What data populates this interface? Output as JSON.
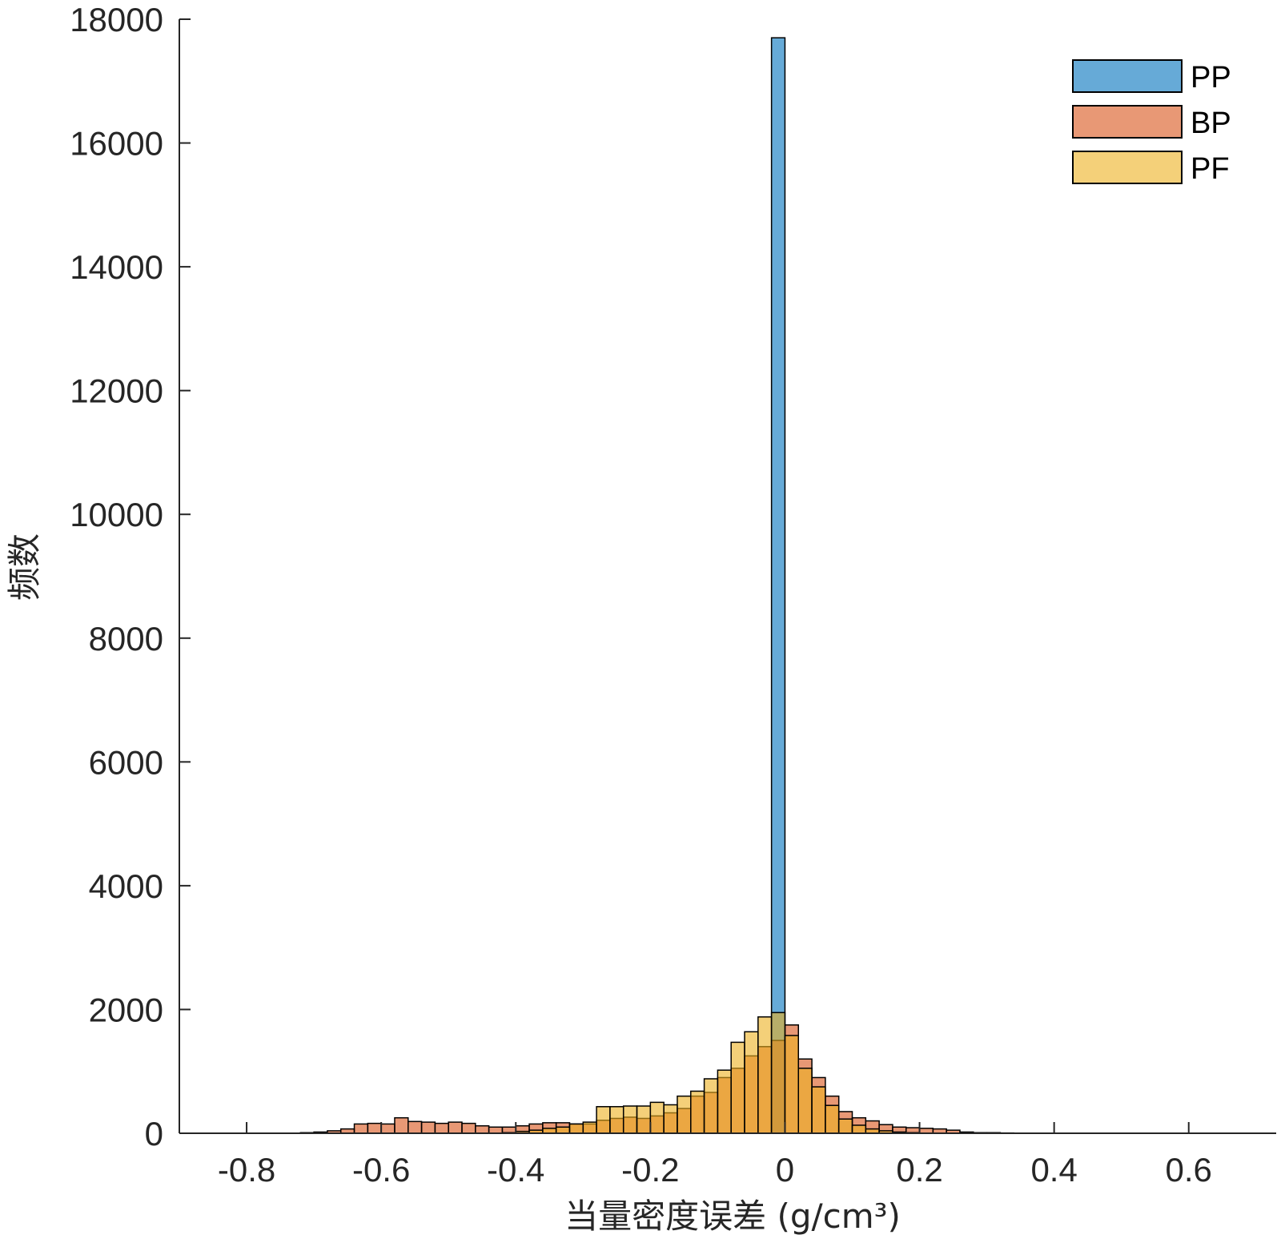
{
  "chart_data": {
    "type": "bar",
    "title": "",
    "xlabel": "当量密度误差 (g/cm³)",
    "ylabel": "频数",
    "xlim": [
      -0.9,
      0.73
    ],
    "ylim": [
      0,
      18000
    ],
    "xticks": [
      -0.8,
      -0.6,
      -0.4,
      -0.2,
      0,
      0.2,
      0.4,
      0.6
    ],
    "xtick_labels": [
      "-0.8",
      "-0.6",
      "-0.4",
      "-0.2",
      "0",
      "0.2",
      "0.4",
      "0.6"
    ],
    "yticks": [
      0,
      2000,
      4000,
      6000,
      8000,
      10000,
      12000,
      14000,
      16000,
      18000
    ],
    "ytick_labels": [
      "0",
      "2000",
      "4000",
      "6000",
      "8000",
      "10000",
      "12000",
      "14000",
      "16000",
      "18000"
    ],
    "bin_width": 0.02,
    "legend_position": "top-right",
    "grid": false,
    "series": [
      {
        "name": "PP",
        "color": "#0072BD",
        "bins": [
          {
            "x0": -0.02,
            "count": 17700
          }
        ]
      },
      {
        "name": "BP",
        "color": "#D95319",
        "bins": [
          {
            "x0": -0.72,
            "count": 10
          },
          {
            "x0": -0.7,
            "count": 20
          },
          {
            "x0": -0.68,
            "count": 40
          },
          {
            "x0": -0.66,
            "count": 70
          },
          {
            "x0": -0.64,
            "count": 150
          },
          {
            "x0": -0.62,
            "count": 160
          },
          {
            "x0": -0.6,
            "count": 150
          },
          {
            "x0": -0.58,
            "count": 250
          },
          {
            "x0": -0.56,
            "count": 190
          },
          {
            "x0": -0.54,
            "count": 180
          },
          {
            "x0": -0.52,
            "count": 160
          },
          {
            "x0": -0.5,
            "count": 180
          },
          {
            "x0": -0.48,
            "count": 160
          },
          {
            "x0": -0.46,
            "count": 120
          },
          {
            "x0": -0.44,
            "count": 100
          },
          {
            "x0": -0.42,
            "count": 100
          },
          {
            "x0": -0.4,
            "count": 120
          },
          {
            "x0": -0.38,
            "count": 150
          },
          {
            "x0": -0.36,
            "count": 170
          },
          {
            "x0": -0.34,
            "count": 170
          },
          {
            "x0": -0.32,
            "count": 150
          },
          {
            "x0": -0.3,
            "count": 150
          },
          {
            "x0": -0.28,
            "count": 210
          },
          {
            "x0": -0.26,
            "count": 240
          },
          {
            "x0": -0.24,
            "count": 260
          },
          {
            "x0": -0.22,
            "count": 240
          },
          {
            "x0": -0.2,
            "count": 280
          },
          {
            "x0": -0.18,
            "count": 330
          },
          {
            "x0": -0.16,
            "count": 400
          },
          {
            "x0": -0.14,
            "count": 600
          },
          {
            "x0": -0.12,
            "count": 660
          },
          {
            "x0": -0.1,
            "count": 900
          },
          {
            "x0": -0.08,
            "count": 1050
          },
          {
            "x0": -0.06,
            "count": 1250
          },
          {
            "x0": -0.04,
            "count": 1400
          },
          {
            "x0": -0.02,
            "count": 1500
          },
          {
            "x0": 0.0,
            "count": 1750
          },
          {
            "x0": 0.02,
            "count": 1200
          },
          {
            "x0": 0.04,
            "count": 900
          },
          {
            "x0": 0.06,
            "count": 600
          },
          {
            "x0": 0.08,
            "count": 350
          },
          {
            "x0": 0.1,
            "count": 250
          },
          {
            "x0": 0.12,
            "count": 200
          },
          {
            "x0": 0.14,
            "count": 140
          },
          {
            "x0": 0.16,
            "count": 100
          },
          {
            "x0": 0.18,
            "count": 90
          },
          {
            "x0": 0.2,
            "count": 80
          },
          {
            "x0": 0.22,
            "count": 70
          },
          {
            "x0": 0.24,
            "count": 50
          },
          {
            "x0": 0.26,
            "count": 20
          },
          {
            "x0": 0.28,
            "count": 10
          },
          {
            "x0": 0.3,
            "count": 10
          },
          {
            "x0": 0.32,
            "count": 5
          }
        ]
      },
      {
        "name": "PF",
        "color": "#EDB120",
        "bins": [
          {
            "x0": -0.42,
            "count": 10
          },
          {
            "x0": -0.4,
            "count": 30
          },
          {
            "x0": -0.38,
            "count": 50
          },
          {
            "x0": -0.36,
            "count": 80
          },
          {
            "x0": -0.34,
            "count": 100
          },
          {
            "x0": -0.32,
            "count": 150
          },
          {
            "x0": -0.3,
            "count": 180
          },
          {
            "x0": -0.28,
            "count": 430
          },
          {
            "x0": -0.26,
            "count": 430
          },
          {
            "x0": -0.24,
            "count": 440
          },
          {
            "x0": -0.22,
            "count": 440
          },
          {
            "x0": -0.2,
            "count": 500
          },
          {
            "x0": -0.18,
            "count": 460
          },
          {
            "x0": -0.16,
            "count": 600
          },
          {
            "x0": -0.14,
            "count": 680
          },
          {
            "x0": -0.12,
            "count": 880
          },
          {
            "x0": -0.1,
            "count": 1020
          },
          {
            "x0": -0.08,
            "count": 1470
          },
          {
            "x0": -0.06,
            "count": 1640
          },
          {
            "x0": -0.04,
            "count": 1880
          },
          {
            "x0": -0.02,
            "count": 1950
          },
          {
            "x0": 0.0,
            "count": 1580
          },
          {
            "x0": 0.02,
            "count": 1050
          },
          {
            "x0": 0.04,
            "count": 750
          },
          {
            "x0": 0.06,
            "count": 450
          },
          {
            "x0": 0.08,
            "count": 230
          },
          {
            "x0": 0.1,
            "count": 130
          },
          {
            "x0": 0.12,
            "count": 70
          },
          {
            "x0": 0.14,
            "count": 40
          },
          {
            "x0": 0.16,
            "count": 20
          },
          {
            "x0": 0.18,
            "count": 10
          }
        ]
      }
    ]
  }
}
